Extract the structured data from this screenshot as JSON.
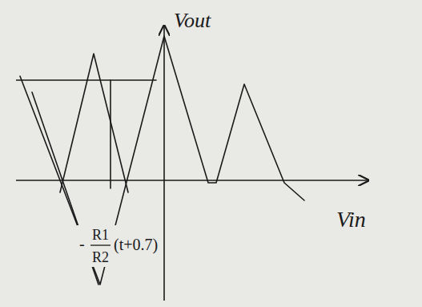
{
  "chart_data": {
    "type": "line",
    "x_label": "Vin",
    "y_label": "Vout",
    "annotation": {
      "sign": "-",
      "numerator": "R1",
      "denominator": "R2",
      "text": "(t+0.7)",
      "x": -9,
      "y": -8
    },
    "xlim": [
      -18.5,
      25.5
    ],
    "ylim": [
      -15,
      18.5
    ],
    "tick_labels": false,
    "grid": false,
    "color": "#1a1a1a",
    "series": [
      {
        "x": [
          -18.5,
          -1
        ],
        "values": [
          12.5,
          12.5
        ]
      },
      {
        "x": [
          -18,
          -8,
          0,
          5.5,
          6.5,
          10,
          15,
          17.5
        ],
        "values": [
          13,
          -13,
          18,
          -0.3,
          -0.3,
          12,
          -0.3,
          -2.5
        ]
      },
      {
        "x": [
          -16.5,
          -8.2
        ],
        "values": [
          11,
          -13
        ]
      },
      {
        "x": [
          -13,
          -8.8,
          -4.5
        ],
        "values": [
          -1.5,
          15.8,
          -1.5
        ]
      },
      {
        "x": [
          -6.7,
          -6.7
        ],
        "values": [
          12.5,
          -1
        ]
      }
    ]
  }
}
